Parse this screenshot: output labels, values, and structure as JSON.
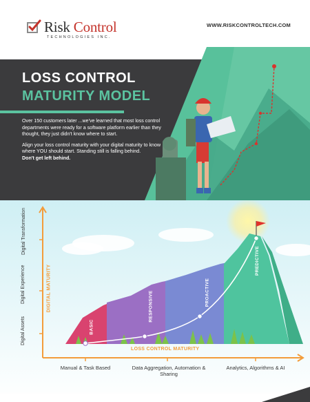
{
  "header": {
    "brand_part1": "Risk ",
    "brand_part2": "Control",
    "brand_sub": "TECHNOLOGIES INC.",
    "url": "WWW.RISKCONTROLTECH.COM"
  },
  "hero": {
    "title_line1": "LOSS CONTROL",
    "title_line2": "MATURITY MODEL",
    "para1": "Over 150 customers later ...we've learned that most loss control departments were ready for a software platform earlier than they thought, they just didn't know where to start.",
    "para2": "Align your loss control maturity with your digital maturity to know where YOU should start. Standing still is falling behind.",
    "para3": "Don't get left behind."
  },
  "chart": {
    "y_axis_title": "DIGITAL MATURITY",
    "x_axis_title": "LOSS CONTROL MATURITY",
    "y_levels": [
      "Digital Assets",
      "Digital Experience",
      "Digital Transformation"
    ],
    "x_levels": [
      "Manual & Task Based",
      "Data Aggregation, Automation & Sharing",
      "Analytics, Algorithms & AI"
    ],
    "stages": [
      "BASIC",
      "RESPONSIVE",
      "PROACTIVE",
      "PREDICTIVE"
    ],
    "colors": {
      "accent_orange": "#f39c3a",
      "basic": "#d9436f",
      "responsive": "#9b6fc4",
      "proactive": "#7a8ad3",
      "predictive": "#4fc49e",
      "hero_dark": "#3b3b3d",
      "teal": "#5bc3a0"
    }
  }
}
